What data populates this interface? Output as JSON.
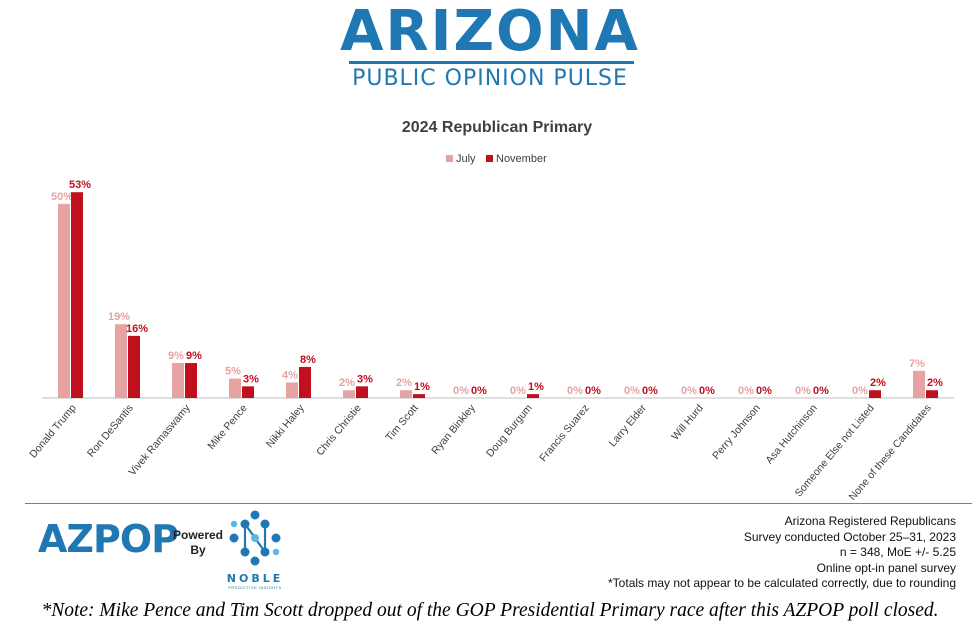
{
  "brand": {
    "title": "ARIZONA",
    "subtitle": "PUBLIC OPINION PULSE"
  },
  "colors": {
    "july": "#e6a3a3",
    "november": "#c0101e",
    "brand": "#1f78b4"
  },
  "chart_data": {
    "type": "bar",
    "title": "2024 Republican Primary",
    "xlabel": "",
    "ylabel": "",
    "ylim": [
      0,
      60
    ],
    "grid": false,
    "legend_position": "top-center",
    "value_suffix": "%",
    "categories": [
      "Donald Trump",
      "Ron DeSantis",
      "Vivek Ramaswamy",
      "Mike Pence",
      "Nikki Haley",
      "Chris Christie",
      "Tim Scott",
      "Ryan Binkley",
      "Doug Burgum",
      "Francis Suarez",
      "Larry Elder",
      "Will Hurd",
      "Perry Johnson",
      "Asa Hutchinson",
      "Someone Else not Listed",
      "None of these Candidates"
    ],
    "series": [
      {
        "name": "July",
        "color": "#e6a3a3",
        "values": [
          50,
          19,
          9,
          5,
          4,
          2,
          2,
          0,
          0,
          0,
          0,
          0,
          0,
          0,
          0,
          7
        ]
      },
      {
        "name": "November",
        "color": "#c0101e",
        "values": [
          53,
          16,
          9,
          3,
          8,
          3,
          1,
          0,
          1,
          0,
          0,
          0,
          0,
          0,
          2,
          2
        ]
      }
    ]
  },
  "footer": {
    "logo_text": "AZPOP",
    "powered_by": "Powered By",
    "noble_name": "NOBLE",
    "noble_tagline": "PREDICTIVE INSIGHTS",
    "survey_lines": [
      "Arizona Registered Republicans",
      "Survey conducted October 25–31, 2023",
      "n = 348, MoE +/- 5.25",
      "Online opt-in panel survey",
      "*Totals may not appear to be calculated correctly, due to rounding"
    ],
    "note": "*Note: Mike Pence and Tim Scott dropped out of the GOP Presidential Primary race after this AZPOP poll closed."
  }
}
